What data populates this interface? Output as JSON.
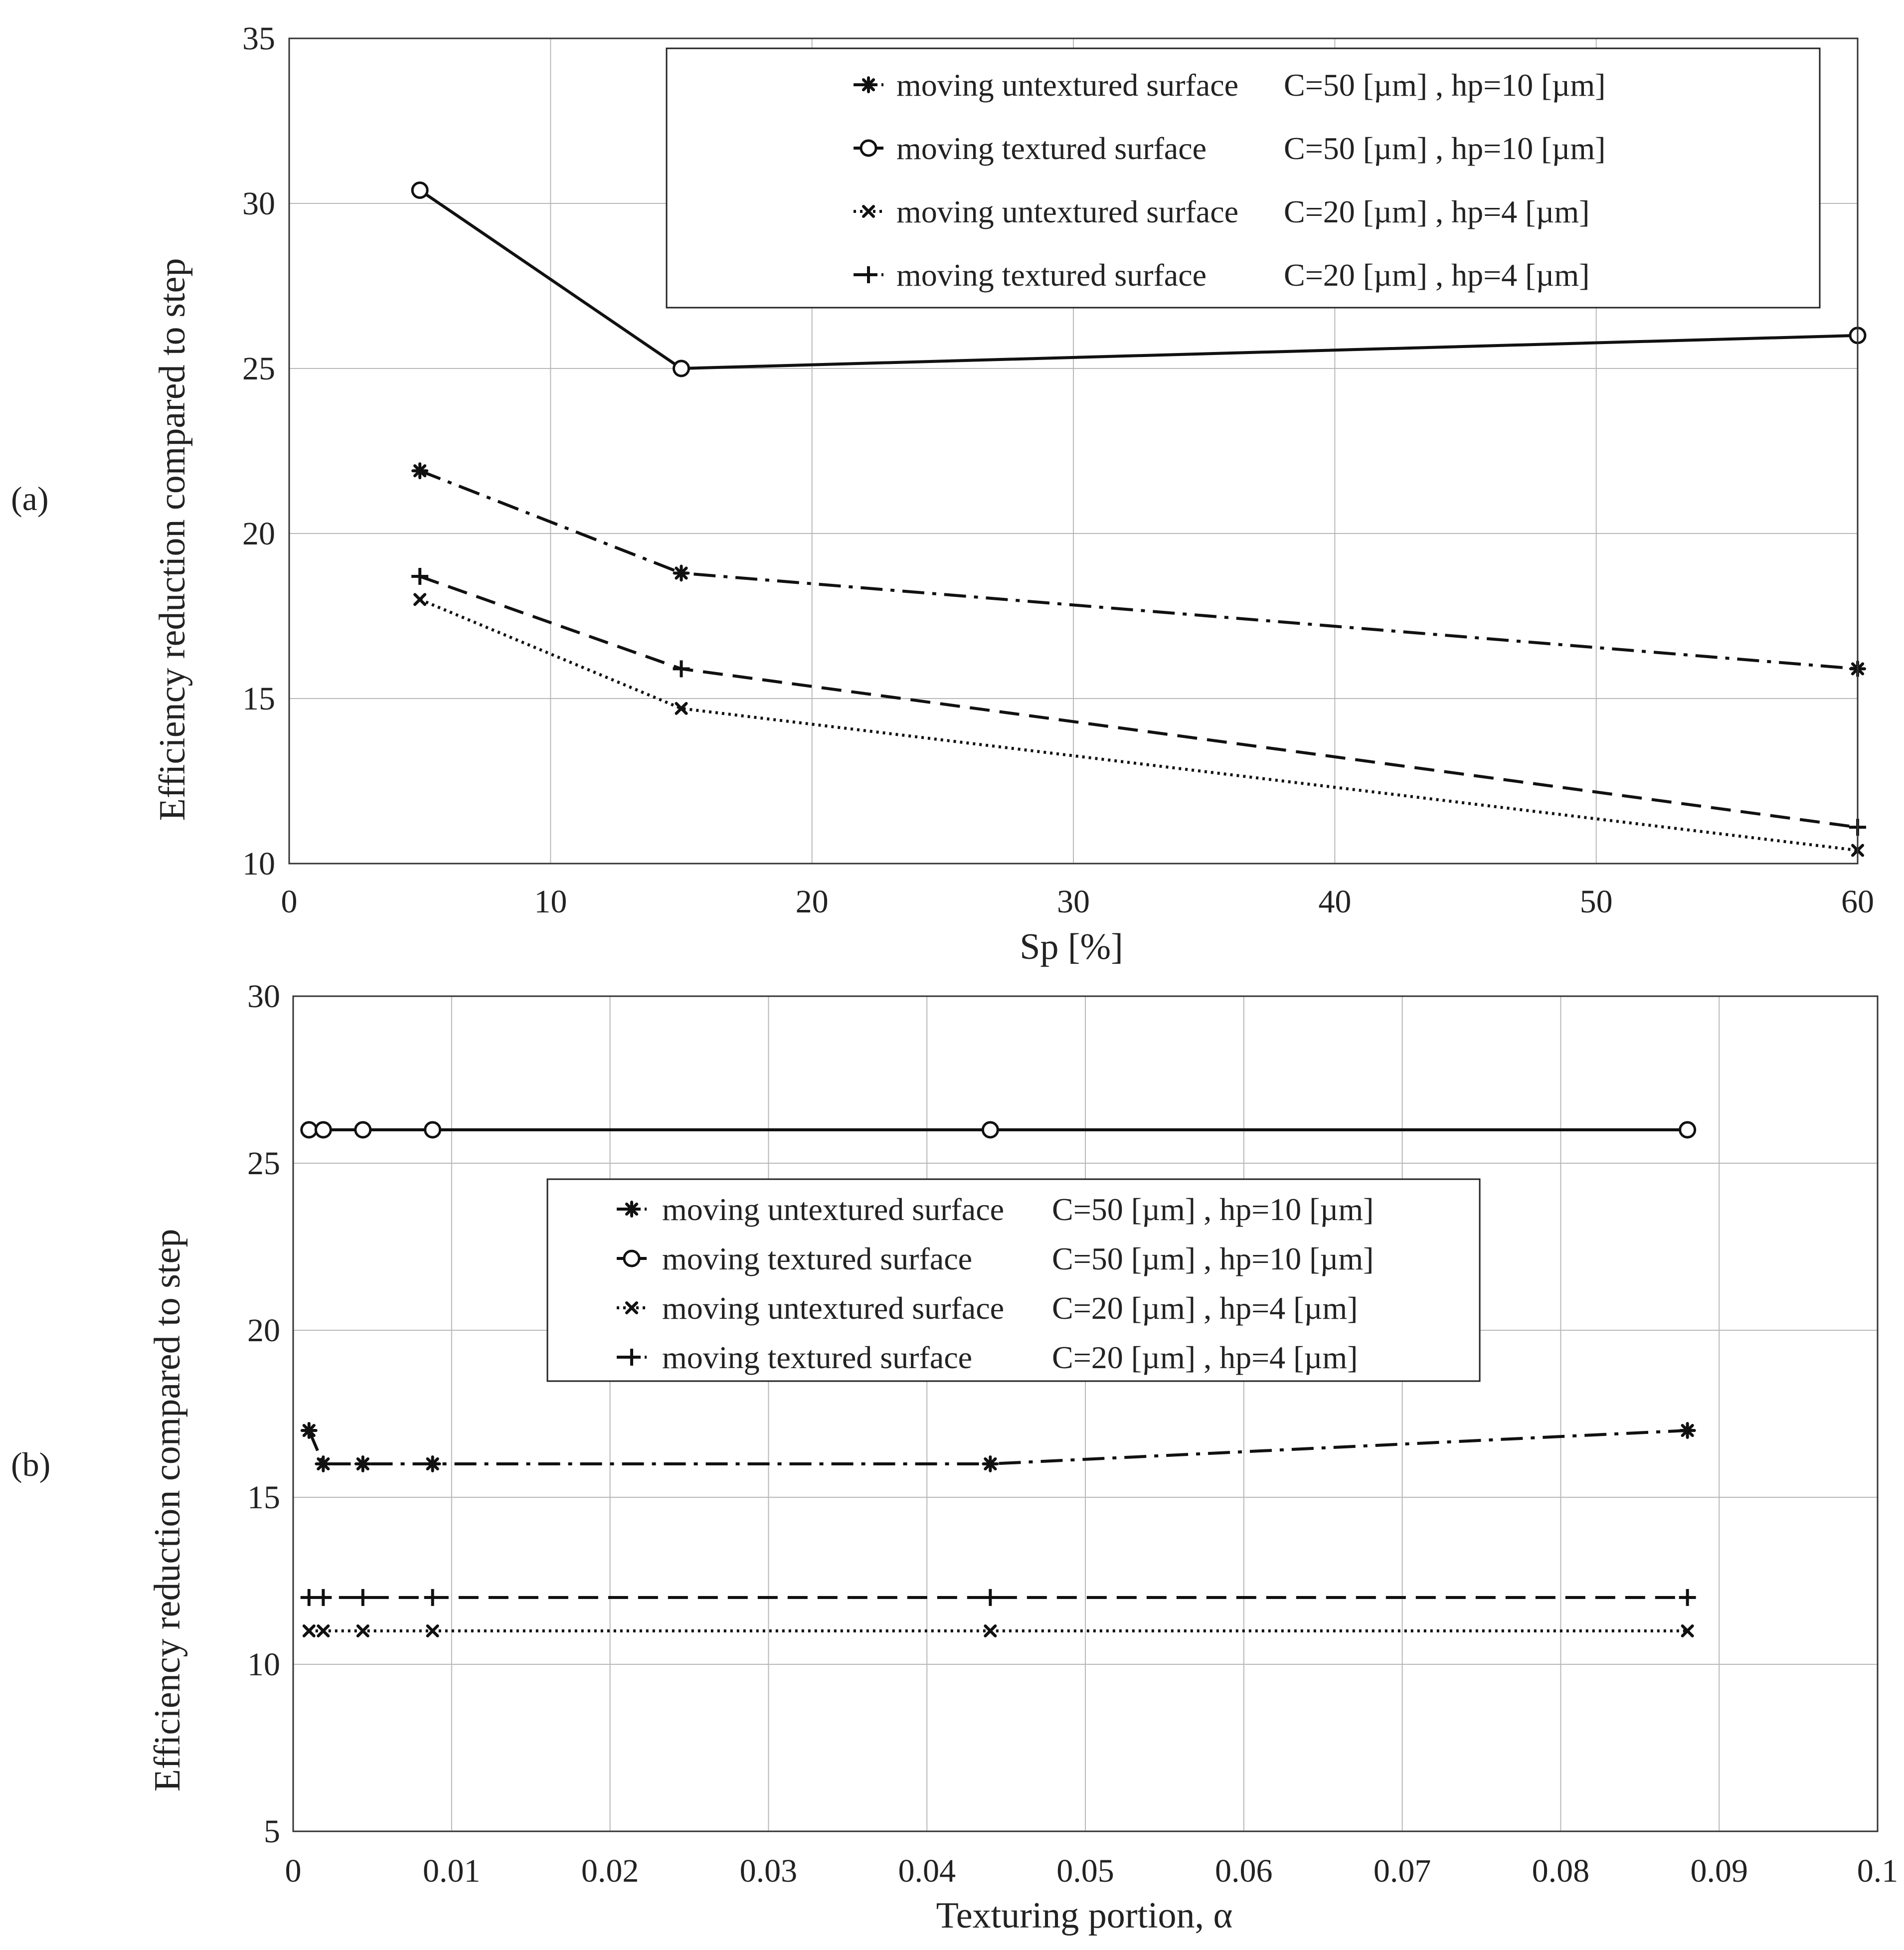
{
  "figure": {
    "colors": {
      "background": "#ffffff",
      "ink": "#111111",
      "grid": "#b8b8b8",
      "text": "#222222"
    }
  },
  "chart_data": [
    {
      "panel_label": "(a)",
      "type": "line",
      "title": "",
      "xlabel": "Sp [%]",
      "ylabel": "Efficiency reduction compared to step",
      "xlim": [
        0,
        60
      ],
      "ylim": [
        10,
        35
      ],
      "xticks": [
        0,
        10,
        20,
        30,
        40,
        50,
        60
      ],
      "xtick_labels": [
        "0",
        "10",
        "20",
        "30",
        "40",
        "50",
        "60"
      ],
      "yticks": [
        10,
        15,
        20,
        25,
        30,
        35
      ],
      "ytick_labels": [
        "10",
        "15",
        "20",
        "25",
        "30",
        "35"
      ],
      "grid": true,
      "legend_position": "top-right",
      "series": [
        {
          "name": "moving untextured surface C=50 [µm] , hp=10 [µm]",
          "label_main": "moving untextured surface",
          "label_params": "C=50 [µm] , hp=10 [µm]",
          "marker": "asterisk",
          "linestyle": "dashdot",
          "x": [
            5,
            15,
            60
          ],
          "y": [
            21.9,
            18.8,
            15.9
          ]
        },
        {
          "name": "moving textured surface C=50 [µm] , hp=10 [µm]",
          "label_main": "moving textured surface",
          "label_params": "C=50 [µm] , hp=10 [µm]",
          "marker": "circle",
          "linestyle": "solid",
          "x": [
            5,
            15,
            60
          ],
          "y": [
            30.4,
            25.0,
            26.0
          ]
        },
        {
          "name": "moving untextured surface C=20 [µm] , hp=4 [µm]",
          "label_main": "moving untextured surface",
          "label_params": "C=20 [µm] , hp=4 [µm]",
          "marker": "x",
          "linestyle": "dotted",
          "x": [
            5,
            15,
            60
          ],
          "y": [
            18.0,
            14.7,
            10.4
          ]
        },
        {
          "name": "moving textured surface C=20 [µm] , hp=4 [µm]",
          "label_main": "moving textured surface",
          "label_params": "C=20 [µm] , hp=4 [µm]",
          "marker": "plus",
          "linestyle": "dashed",
          "x": [
            5,
            15,
            60
          ],
          "y": [
            18.7,
            15.9,
            11.1
          ]
        }
      ]
    },
    {
      "panel_label": "(b)",
      "type": "line",
      "title": "",
      "xlabel": "Texturing portion, α",
      "ylabel": "Efficiency reduction compared to step",
      "xlim": [
        0,
        0.1
      ],
      "ylim": [
        5,
        30
      ],
      "xticks": [
        0,
        0.01,
        0.02,
        0.03,
        0.04,
        0.05,
        0.06,
        0.07,
        0.08,
        0.09,
        0.1
      ],
      "xtick_labels": [
        "0",
        "0.01",
        "0.02",
        "0.03",
        "0.04",
        "0.05",
        "0.06",
        "0.07",
        "0.08",
        "0.09",
        "0.1"
      ],
      "yticks": [
        5,
        10,
        15,
        20,
        25,
        30
      ],
      "ytick_labels": [
        "5",
        "10",
        "15",
        "20",
        "25",
        "30"
      ],
      "grid": true,
      "legend_position": "center",
      "series": [
        {
          "name": "moving untextured surface C=50 [µm] , hp=10 [µm]",
          "label_main": "moving untextured surface",
          "label_params": "C=50 [µm] , hp=10 [µm]",
          "marker": "asterisk",
          "linestyle": "dashdot",
          "x": [
            0.001,
            0.0019,
            0.0044,
            0.0088,
            0.044,
            0.088
          ],
          "y": [
            17,
            16,
            16,
            16,
            16,
            17
          ]
        },
        {
          "name": "moving textured surface C=50 [µm] , hp=10 [µm]",
          "label_main": "moving textured surface",
          "label_params": "C=50 [µm] , hp=10 [µm]",
          "marker": "circle",
          "linestyle": "solid",
          "x": [
            0.001,
            0.0019,
            0.0044,
            0.0088,
            0.044,
            0.088
          ],
          "y": [
            26,
            26,
            26,
            26,
            26,
            26
          ]
        },
        {
          "name": "moving untextured surface C=20 [µm] , hp=4 [µm]",
          "label_main": "moving untextured surface",
          "label_params": "C=20 [µm] , hp=4 [µm]",
          "marker": "x",
          "linestyle": "dotted",
          "x": [
            0.001,
            0.0019,
            0.0044,
            0.0088,
            0.044,
            0.088
          ],
          "y": [
            11,
            11,
            11,
            11,
            11,
            11
          ]
        },
        {
          "name": "moving textured surface C=20 [µm] , hp=4 [µm]",
          "label_main": "moving textured surface",
          "label_params": "C=20 [µm] , hp=4 [µm]",
          "marker": "plus",
          "linestyle": "dashed",
          "x": [
            0.001,
            0.0019,
            0.0044,
            0.0088,
            0.044,
            0.088
          ],
          "y": [
            12,
            12,
            12,
            12,
            12,
            12
          ]
        }
      ]
    }
  ]
}
